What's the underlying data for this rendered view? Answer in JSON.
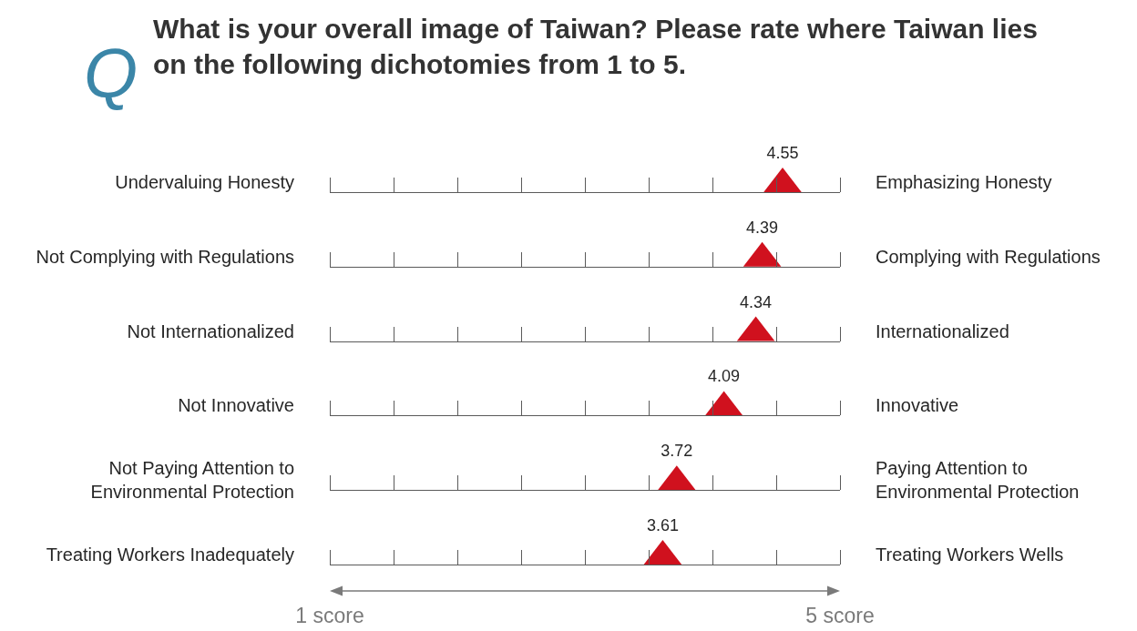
{
  "chart_data": {
    "type": "scatter",
    "orientation": "horizontal",
    "title": "What is your overall image of Taiwan? Please rate where Taiwan lies on the following dichotomies from 1 to 5.",
    "categories": [
      "Undervaluing Honesty",
      "Not Complying with Regulations",
      "Not Internationalized",
      "Not Innovative",
      "Not Paying Attention to Environmental Protection",
      "Treating Workers Inadequately"
    ],
    "y2_categories": [
      "Emphasizing Honesty",
      "Complying with Regulations",
      "Internationalized",
      "Innovative",
      "Paying Attention to Environmental Protection",
      "Treating Workers Wells"
    ],
    "values": [
      4.55,
      4.39,
      4.34,
      4.09,
      3.72,
      3.61
    ],
    "color": "#d0111e",
    "marker": "triangle",
    "data_labels": true,
    "xlim": [
      1,
      5
    ],
    "xticks": [
      {
        "value": 1,
        "label": "1 score"
      },
      {
        "value": 1.5,
        "label": null
      },
      {
        "value": 2,
        "label": null
      },
      {
        "value": 2.5,
        "label": null
      },
      {
        "value": 3,
        "label": null
      },
      {
        "value": 3.5,
        "label": null
      },
      {
        "value": 4,
        "label": null
      },
      {
        "value": 4.5,
        "label": null
      },
      {
        "value": 5,
        "label": "5 score"
      }
    ],
    "grid": "y",
    "annotations": [
      "Q"
    ]
  }
}
